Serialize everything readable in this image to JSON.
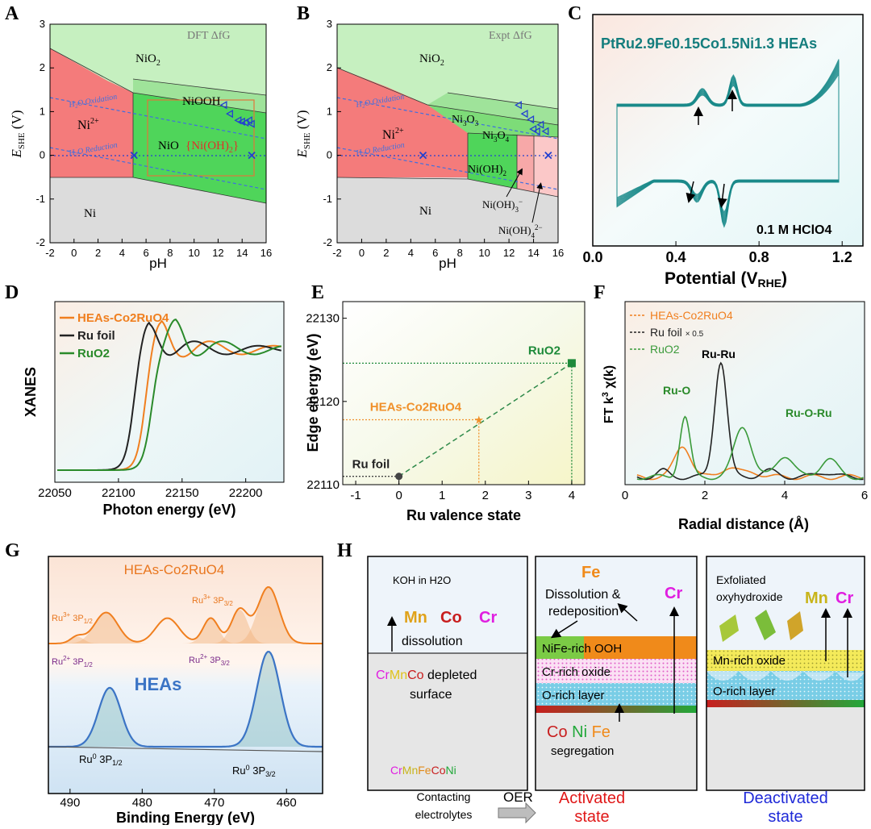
{
  "panels": [
    "A",
    "B",
    "C",
    "D",
    "E",
    "F",
    "G",
    "H"
  ],
  "chart_data": [
    {
      "id": "A",
      "type": "area",
      "title": "DFT ΔfG",
      "xlabel": "pH",
      "ylabel": "E_SHE (V)",
      "xlim": [
        -2,
        16
      ],
      "ylim": [
        -2,
        3
      ],
      "xticks": [
        "-2",
        "0",
        "2",
        "4",
        "6",
        "8",
        "10",
        "12",
        "14",
        "16"
      ],
      "yticks": [
        "-2",
        "-1",
        "0",
        "1",
        "2",
        "3"
      ],
      "regions": [
        {
          "label": "NiO2",
          "color": "#c6f0c0"
        },
        {
          "label": "NiOOH",
          "color": "#9fe39a"
        },
        {
          "label": "Ni2+",
          "color": "#f47b7b"
        },
        {
          "label": "NiO",
          "color": "#4fd55a"
        },
        {
          "label": "{Ni(OH)2}",
          "color": "#4fd55a"
        },
        {
          "label": "Ni",
          "color": "#dcdcdc"
        }
      ],
      "lines": [
        {
          "label": "H2O Oxidation",
          "x": [
            -2,
            16
          ],
          "y": [
            1.347,
            0.285
          ]
        },
        {
          "label": "H2O Reduction",
          "x": [
            -2,
            16
          ],
          "y": [
            0.118,
            -0.944
          ]
        }
      ],
      "markers_triangle": [
        [
          12.5,
          1.15
        ],
        [
          13,
          0.95
        ],
        [
          13.7,
          0.8
        ],
        [
          14,
          0.77
        ],
        [
          14.3,
          0.75
        ],
        [
          14.6,
          0.8
        ],
        [
          14.8,
          0.72
        ]
      ],
      "markers_x": [
        [
          5,
          0
        ],
        [
          14.8,
          0
        ]
      ]
    },
    {
      "id": "B",
      "type": "area",
      "title": "Expt ΔfG",
      "xlabel": "pH",
      "ylabel": "E_SHE (V)",
      "xlim": [
        -2,
        16
      ],
      "ylim": [
        -2,
        3
      ],
      "xticks": [
        "-2",
        "0",
        "2",
        "4",
        "6",
        "8",
        "10",
        "12",
        "14",
        "16"
      ],
      "yticks": [
        "-2",
        "-1",
        "0",
        "1",
        "2",
        "3"
      ],
      "regions": [
        {
          "label": "NiO2",
          "color": "#c6f0c0"
        },
        {
          "label": "Ni3O3",
          "color": "#9fe39a"
        },
        {
          "label": "Ni3O4",
          "color": "#7ddc78"
        },
        {
          "label": "Ni2+",
          "color": "#f47b7b"
        },
        {
          "label": "Ni(OH)2",
          "color": "#4fd55a"
        },
        {
          "label": "Ni(OH)3-",
          "color": "#f7a8a8"
        },
        {
          "label": "Ni(OH)4 2-",
          "color": "#fbc8c8"
        },
        {
          "label": "Ni",
          "color": "#dcdcdc"
        }
      ],
      "lines": [
        {
          "label": "H2O Oxidation",
          "x": [
            -2,
            16
          ],
          "y": [
            1.347,
            0.285
          ]
        },
        {
          "label": "H2O Reduction",
          "x": [
            -2,
            16
          ],
          "y": [
            0.118,
            -0.944
          ]
        }
      ],
      "markers_triangle": [
        [
          12.8,
          1.15
        ],
        [
          13.3,
          0.95
        ],
        [
          13.8,
          0.82
        ],
        [
          14,
          0.6
        ],
        [
          14.3,
          0.55
        ],
        [
          14.6,
          0.7
        ],
        [
          15,
          0.55
        ]
      ],
      "markers_x": [
        [
          5,
          0
        ],
        [
          15.2,
          0
        ]
      ]
    },
    {
      "id": "C",
      "type": "line",
      "title": "PtRu2.9Fe0.15Co1.5Ni1.3 HEAs",
      "annotation": "0.1 M HClO4",
      "xlabel": "Potential (V_RHE)",
      "xlim": [
        0.0,
        1.3
      ],
      "xticks": [
        "0.0",
        "0.4",
        "0.8",
        "1.2"
      ],
      "color": "#1a8a8a",
      "cycles": 12
    },
    {
      "id": "D",
      "type": "line",
      "xlabel": "Photon energy (eV)",
      "ylabel": "XANES",
      "xlim": [
        22050,
        22230
      ],
      "xticks": [
        "22050",
        "22100",
        "22150",
        "22200"
      ],
      "series": [
        {
          "name": "HEAs-Co2RuO4",
          "color": "#f07f1f"
        },
        {
          "name": "Ru foil",
          "color": "#222222"
        },
        {
          "name": "RuO2",
          "color": "#2a8a2a"
        }
      ]
    },
    {
      "id": "E",
      "type": "scatter",
      "xlabel": "Ru valence state",
      "ylabel": "Edge energy (eV)",
      "xlim": [
        -1.3,
        4.3
      ],
      "ylim": [
        22110,
        22132
      ],
      "xticks": [
        "-1",
        "0",
        "1",
        "2",
        "3",
        "4"
      ],
      "yticks": [
        "22110",
        "22120",
        "22130"
      ],
      "points": [
        {
          "label": "Ru foil",
          "x": 0,
          "y": 22111,
          "color": "#444444"
        },
        {
          "label": "HEAs-Co2RuO4",
          "x": 1.85,
          "y": 22117.8,
          "color": "#f0902a"
        },
        {
          "label": "RuO2",
          "x": 4,
          "y": 22124.6,
          "color": "#1e8a3a"
        }
      ]
    },
    {
      "id": "F",
      "type": "line",
      "xlabel": "Radial distance (Å)",
      "ylabel": "FT k3 χ(k)",
      "xlim": [
        0,
        6
      ],
      "xticks": [
        "0",
        "2",
        "4",
        "6"
      ],
      "annotations": [
        "Ru-O",
        "Ru-Ru",
        "Ru-O-Ru"
      ],
      "series": [
        {
          "name": "HEAs-Co2RuO4",
          "color": "#f07f1f"
        },
        {
          "name": "Ru foil",
          "suffix": "× 0.5",
          "color": "#222222"
        },
        {
          "name": "RuO2",
          "color": "#3a9a3a"
        }
      ]
    },
    {
      "id": "G",
      "type": "line",
      "xlabel": "Binding Energy (eV)",
      "xlim": [
        493,
        455
      ],
      "xticks": [
        "490",
        "480",
        "470",
        "460"
      ],
      "series": [
        {
          "name": "HEAs-Co2RuO4",
          "color": "#f07f1f"
        },
        {
          "name": "HEAs",
          "color": "#3b74c5"
        }
      ],
      "peak_labels": [
        "Ru3+ 3P1/2",
        "Ru3+ 3P3/2",
        "Ru2+ 3P1/2",
        "Ru2+ 3P3/2",
        "Ru0 3P1/2",
        "Ru0 3P3/2"
      ]
    }
  ],
  "panelH": {
    "box1": {
      "top": "KOH in H2O",
      "els": [
        "Mn",
        "Co",
        "Cr"
      ],
      "dissolution": "dissolution",
      "depleted1": "CrMnCo",
      "depleted2": " depleted",
      "surface": "surface",
      "alloy": [
        "Cr",
        "Mn",
        "Fe",
        "Co",
        "Ni"
      ]
    },
    "box2": {
      "fe": "Fe",
      "diss": "Dissolution &",
      "redep": "redeposition",
      "cr": "Cr",
      "ooh": "NiFe-rich OOH",
      "oxide": "Cr-rich oxide",
      "orich": "O-rich layer",
      "seg_els": [
        "Co",
        "Ni",
        "Fe"
      ],
      "segregation": "segregation"
    },
    "box3": {
      "exf1": "Exfoliated",
      "exf2": "oxyhydroxide",
      "els": [
        "Mn",
        "Cr"
      ],
      "mn_oxide": "Mn-rich oxide",
      "orich": "O-rich layer"
    },
    "captions": {
      "contacting1": "Contacting",
      "contacting2": "electrolytes",
      "oer": "OER",
      "activated1": "Activated",
      "activated2": "state",
      "deactivated1": "Deactivated",
      "deactivated2": "state"
    }
  }
}
